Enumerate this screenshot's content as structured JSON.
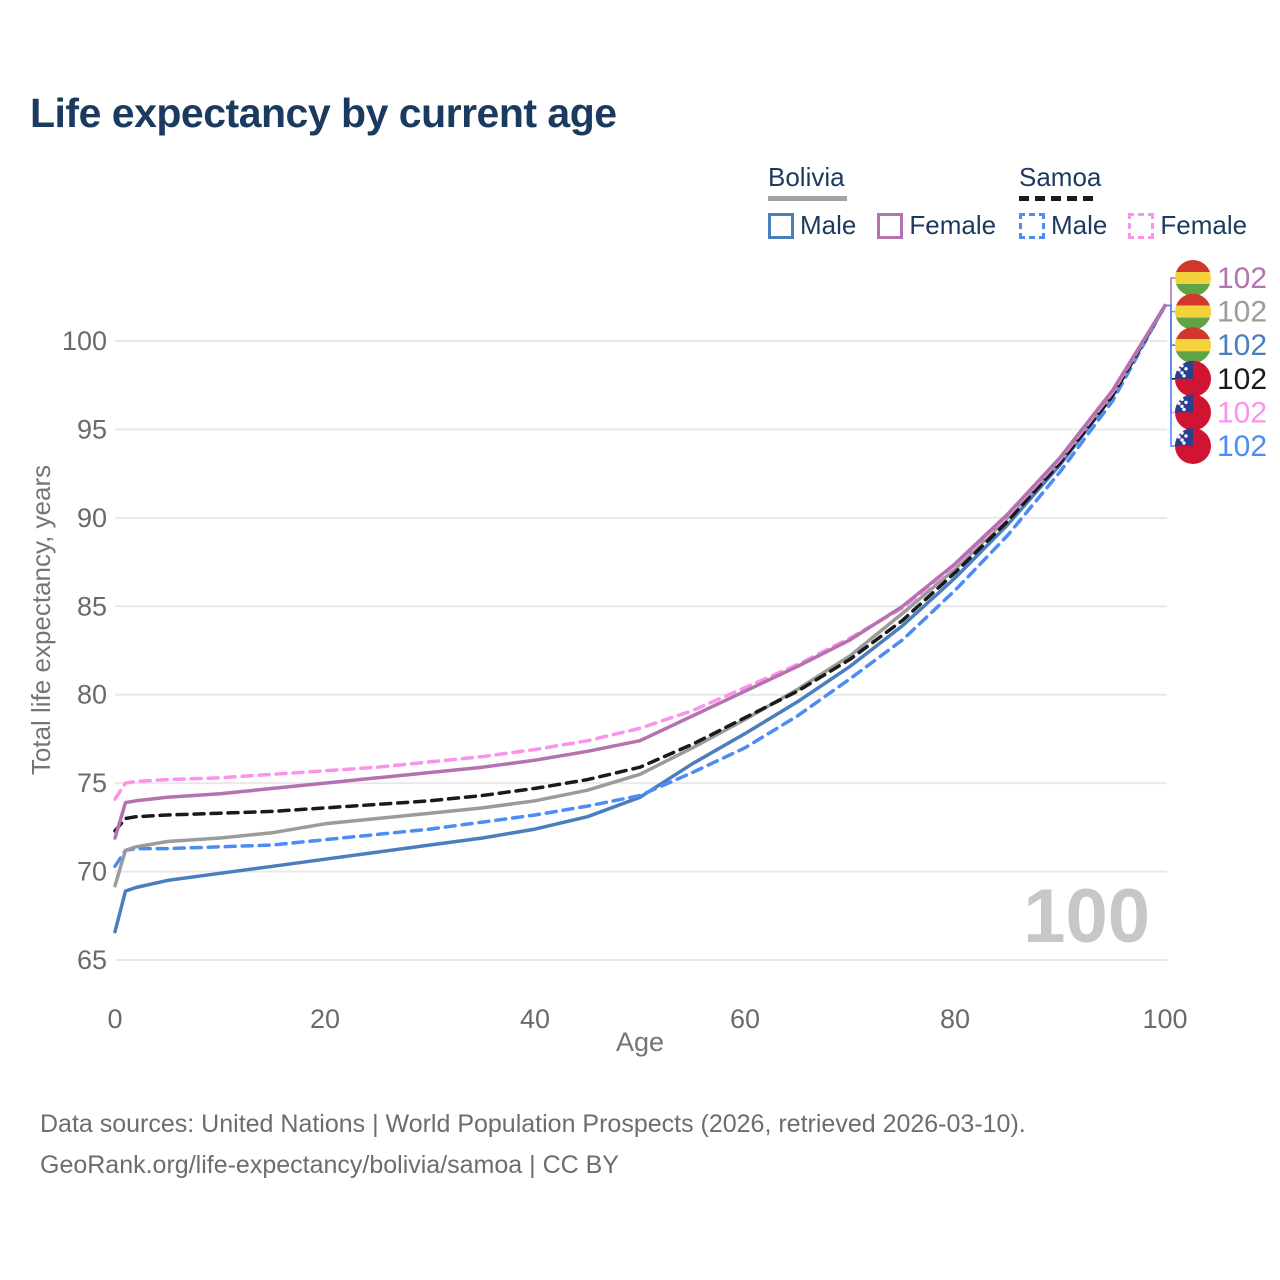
{
  "header": {
    "title": "Life expectancy by current age"
  },
  "legend": {
    "groups": [
      {
        "id": "bolivia",
        "label": "Bolivia",
        "underline_style": "solid",
        "underline_color": "#a3a3a3",
        "items": [
          {
            "label": "Male",
            "line_style": "solid",
            "color": "#4a7ebc"
          },
          {
            "label": "Female",
            "line_style": "solid",
            "color": "#b472ae"
          }
        ]
      },
      {
        "id": "samoa",
        "label": "Samoa",
        "underline_style": "dashed",
        "underline_color": "#1a1a1a",
        "items": [
          {
            "label": "Male",
            "line_style": "dashed",
            "color": "#4d8bf5"
          },
          {
            "label": "Female",
            "line_style": "dashed",
            "color": "#fb92ec"
          }
        ]
      }
    ]
  },
  "chart_data": {
    "type": "line",
    "title": "Life expectancy by current age",
    "xlabel": "Age",
    "ylabel": "Total life expectancy, years",
    "xlim": [
      0,
      100
    ],
    "ylim": [
      65,
      102.5
    ],
    "x_ticks": [
      0,
      20,
      40,
      60,
      80,
      100
    ],
    "y_ticks": [
      65,
      70,
      75,
      80,
      85,
      90,
      95,
      100
    ],
    "grid": "horizontal",
    "legend_position": "top-right",
    "watermark_age": "100",
    "x": [
      0,
      1,
      2,
      5,
      10,
      15,
      20,
      25,
      30,
      35,
      40,
      45,
      50,
      55,
      60,
      65,
      70,
      75,
      80,
      85,
      90,
      95,
      100
    ],
    "series": [
      {
        "id": "bolivia-male",
        "name": "Bolivia Male",
        "country": "Bolivia",
        "sex": "Male",
        "style": "solid",
        "color": "#4a7ebc",
        "values": [
          66.6,
          68.9,
          69.1,
          69.5,
          69.9,
          70.3,
          70.7,
          71.1,
          71.5,
          71.9,
          72.4,
          73.1,
          74.2,
          76.1,
          77.8,
          79.6,
          81.6,
          83.9,
          86.6,
          89.6,
          93.0,
          96.9,
          102
        ]
      },
      {
        "id": "samoa-male",
        "name": "Samoa Male",
        "country": "Samoa",
        "sex": "Male",
        "style": "dashed",
        "color": "#4d8bf5",
        "values": [
          70.3,
          71.2,
          71.3,
          71.3,
          71.4,
          71.5,
          71.8,
          72.1,
          72.4,
          72.8,
          73.2,
          73.7,
          74.3,
          75.6,
          77.0,
          78.8,
          80.9,
          83.1,
          85.9,
          89.0,
          92.6,
          96.6,
          102
        ]
      },
      {
        "id": "bolivia-overall",
        "name": "Bolivia (both sexes)",
        "country": "Bolivia",
        "sex": "All",
        "style": "solid",
        "color": "#9b9b9b",
        "values": [
          69.2,
          71.2,
          71.4,
          71.7,
          71.9,
          72.2,
          72.7,
          73.0,
          73.3,
          73.6,
          74.0,
          74.6,
          75.5,
          77.0,
          78.6,
          80.3,
          82.2,
          84.6,
          87.1,
          90.0,
          93.2,
          97.0,
          102
        ]
      },
      {
        "id": "samoa-overall",
        "name": "Samoa (both sexes)",
        "country": "Samoa",
        "sex": "All",
        "style": "dashed",
        "color": "#1a1a1a",
        "values": [
          72.3,
          73.0,
          73.1,
          73.2,
          73.3,
          73.4,
          73.6,
          73.8,
          74.0,
          74.3,
          74.7,
          75.2,
          75.9,
          77.2,
          78.7,
          80.2,
          82.0,
          84.2,
          86.9,
          89.8,
          93.1,
          96.9,
          102
        ]
      },
      {
        "id": "samoa-female",
        "name": "Samoa Female",
        "country": "Samoa",
        "sex": "Female",
        "style": "dashed",
        "color": "#fb92ec",
        "values": [
          74.1,
          75.0,
          75.1,
          75.2,
          75.3,
          75.5,
          75.7,
          75.9,
          76.2,
          76.5,
          76.9,
          77.4,
          78.1,
          79.1,
          80.4,
          81.7,
          83.2,
          84.9,
          87.3,
          90.1,
          93.3,
          97.1,
          102
        ]
      },
      {
        "id": "bolivia-female",
        "name": "Bolivia Female",
        "country": "Bolivia",
        "sex": "Female",
        "style": "solid",
        "color": "#b472ae",
        "values": [
          71.9,
          73.9,
          74.0,
          74.2,
          74.4,
          74.7,
          75.0,
          75.3,
          75.6,
          75.9,
          76.3,
          76.8,
          77.4,
          78.8,
          80.2,
          81.6,
          83.1,
          85.0,
          87.4,
          90.2,
          93.4,
          97.2,
          102
        ]
      }
    ],
    "end_labels": [
      {
        "series": "bolivia-female",
        "flag": "bolivia",
        "value": "102",
        "color": "#b472ae"
      },
      {
        "series": "bolivia-overall",
        "flag": "bolivia",
        "value": "102",
        "color": "#9b9b9b"
      },
      {
        "series": "bolivia-male",
        "flag": "bolivia",
        "value": "102",
        "color": "#4a7ebc"
      },
      {
        "series": "samoa-overall",
        "flag": "samoa",
        "value": "102",
        "color": "#1a1a1a"
      },
      {
        "series": "samoa-female",
        "flag": "samoa",
        "value": "102",
        "color": "#fb92ec"
      },
      {
        "series": "samoa-male",
        "flag": "samoa",
        "value": "102",
        "color": "#4d8bf5"
      }
    ],
    "flag_colors": {
      "bolivia": {
        "red": "#d2372c",
        "yellow": "#f2d33c",
        "green": "#5fa344"
      },
      "samoa": {
        "red": "#cf1531",
        "blue": "#2b3f90",
        "star": "#ffffff"
      }
    }
  },
  "footer": {
    "line1": "Data sources: United Nations | World Population Prospects (2026, retrieved 2026-03-10).",
    "line2": "GeoRank.org/life-expectancy/bolivia/samoa | CC BY"
  }
}
